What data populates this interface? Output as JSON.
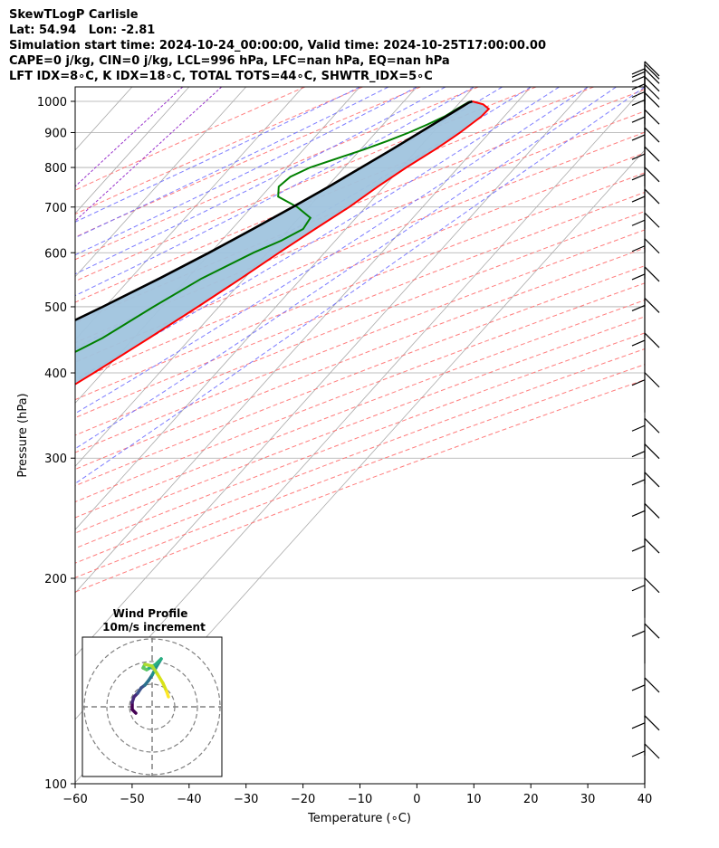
{
  "header": {
    "line1": "SkewTLogP Carlisle",
    "line2": "Lat: 54.94   Lon: -2.81",
    "line3": "Simulation start time: 2024-10-24_00:00:00, Valid time: 2024-10-25T17:00:00.00",
    "line4": "CAPE=0 j/kg, CIN=0 j/kg, LCL=996 hPa, LFC=nan hPa, EQ=nan hPa",
    "line5": "LFT IDX=8∘C, K IDX=18∘C, TOTAL TOTS=44∘C, SHWTR_IDX=5∘C"
  },
  "chart_data": {
    "type": "line",
    "xlabel": "Temperature (∘C)",
    "ylabel": "Pressure (hPa)",
    "xlim": [
      -60,
      40
    ],
    "ylim": [
      1050,
      100
    ],
    "yscale": "log",
    "skew": true,
    "grid": true,
    "x_ticks": [
      -60,
      -50,
      -40,
      -30,
      -20,
      -10,
      0,
      10,
      20,
      30,
      40
    ],
    "x_tick_labels": [
      "−60",
      "−50",
      "−40",
      "−30",
      "−20",
      "−10",
      "0",
      "10",
      "20",
      "30",
      "40"
    ],
    "y_ticks": [
      100,
      200,
      300,
      400,
      500,
      600,
      700,
      800,
      900,
      1000
    ],
    "y_tick_labels": [
      "100",
      "200",
      "300",
      "400",
      "500",
      "600",
      "700",
      "800",
      "900",
      "1000"
    ],
    "colors": {
      "temperature": "#ff0000",
      "dewpoint": "#008000",
      "parcel": "#000000",
      "cape_fill": "#a0c4de",
      "dry_adiabats": "#ff6666",
      "moist_adiabats": "#6666ff",
      "mixing_ratio": "#9933cc",
      "isotherms": "#aaaaaa"
    },
    "series": [
      {
        "key": "temperature",
        "pressure": [
          1000,
          990,
          975,
          950,
          925,
          900,
          875,
          850,
          800,
          750,
          700,
          650,
          600,
          550,
          500,
          450,
          400,
          350,
          300,
          275,
          250,
          225,
          200,
          180,
          160,
          150,
          140,
          125,
          110,
          100
        ],
        "temperature": [
          12,
          14.4,
          16.1,
          16.0,
          15.4,
          14.8,
          14.0,
          13.1,
          10.9,
          8.9,
          7.1,
          4.6,
          2.0,
          -0.6,
          -3.7,
          -7.3,
          -11.5,
          -16.6,
          -22.7,
          -26.4,
          -30.3,
          -34.0,
          -36.5,
          -42.2,
          -44.6,
          -45.7,
          -46.8,
          -48.6,
          -51.3,
          -53.0
        ]
      },
      {
        "key": "dewpoint",
        "pressure": [
          1000,
          975,
          950,
          925,
          900,
          875,
          850,
          800,
          775,
          750,
          725,
          700,
          675,
          650,
          625,
          600,
          550,
          500,
          450,
          400,
          375,
          350,
          300,
          275,
          250,
          225,
          200,
          175,
          165,
          160,
          150,
          125,
          100
        ],
        "temperature": [
          11.6,
          10.5,
          9.5,
          7.8,
          5.8,
          3.4,
          0.6,
          -6.0,
          -8.0,
          -8.5,
          -7.0,
          -2.0,
          2.0,
          2.5,
          0.5,
          -2.5,
          -7.5,
          -11.5,
          -15.5,
          -22.0,
          -26.0,
          -28.0,
          -33.0,
          -35.5,
          -37.0,
          -41.0,
          -45.0,
          -48.3,
          -49.6,
          -51.7,
          -52.3,
          -54.9,
          -58.8
        ]
      },
      {
        "key": "parcel",
        "pressure": [
          1000,
          996,
          950,
          900,
          850,
          800,
          750,
          700,
          650,
          600,
          550,
          500,
          450,
          400,
          350,
          300,
          250,
          200,
          150,
          100
        ],
        "temperature": [
          12.0,
          11.6,
          9.8,
          7.7,
          5.5,
          3.0,
          0.3,
          -2.8,
          -6.3,
          -10.3,
          -14.9,
          -20.4,
          -26.8,
          -34.2,
          -42.8,
          -52.3,
          -62.9,
          -74.8,
          -88.6,
          -105.7
        ]
      }
    ],
    "wind_barbs_pressure": [
      1000,
      990,
      975,
      950,
      925,
      900,
      850,
      800,
      750,
      700,
      650,
      600,
      550,
      500,
      450,
      400,
      350,
      300,
      275,
      250,
      225,
      200,
      175,
      150,
      125,
      110,
      100
    ],
    "hodograph": {
      "title": "Wind Profile",
      "subtitle": "10m/s increment"
    }
  }
}
